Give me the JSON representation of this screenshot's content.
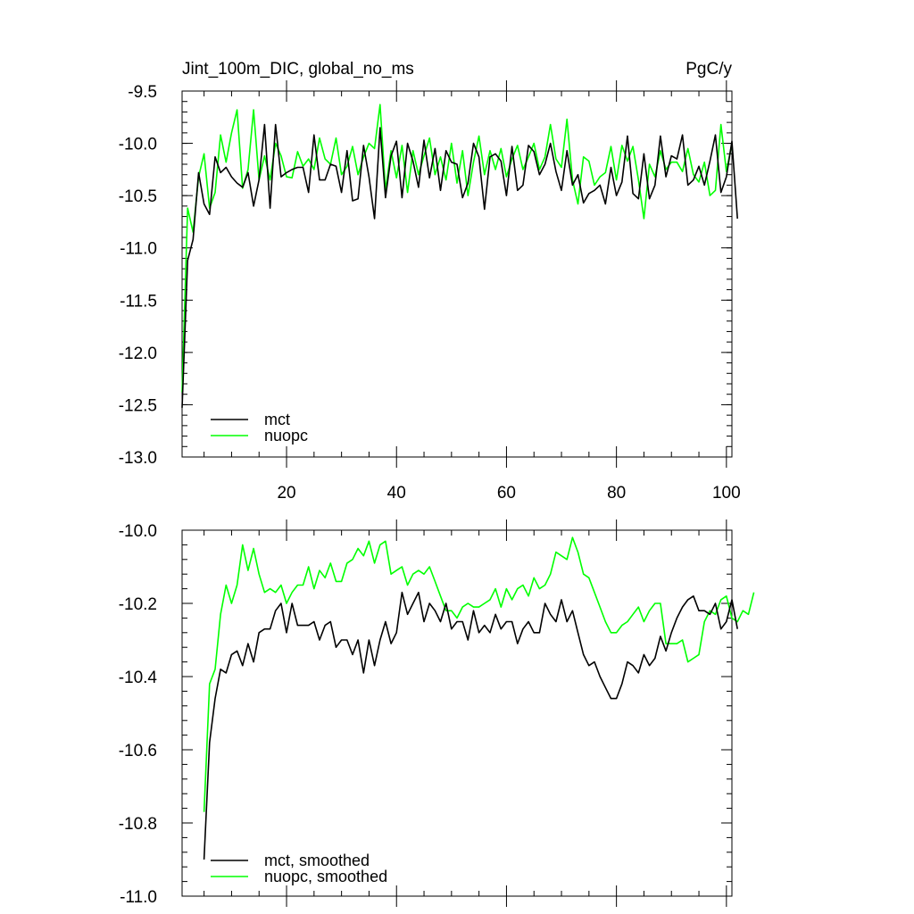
{
  "chart_data": [
    {
      "type": "line",
      "title": "Jint_100m_DIC, global_no_ms",
      "units": "PgC/y",
      "xlim": [
        1,
        101
      ],
      "ylim": [
        -13.0,
        -9.5
      ],
      "x_ticks": [
        20,
        40,
        60,
        80,
        100
      ],
      "y_ticks": [
        -9.5,
        -10.0,
        -10.5,
        -11.0,
        -11.5,
        -12.0,
        -12.5,
        -13.0
      ],
      "y_tick_labels": [
        "-9.5",
        "-10.0",
        "-10.5",
        "-11.0",
        "-11.5",
        "-12.0",
        "-12.5",
        "-13.0"
      ],
      "legend_position": "bottom-left",
      "series": [
        {
          "name": "mct",
          "color": "#000000",
          "x_start": 1,
          "values": [
            -12.53,
            -11.12,
            -10.92,
            -10.28,
            -10.58,
            -10.68,
            -10.13,
            -10.28,
            -10.23,
            -10.32,
            -10.38,
            -10.42,
            -10.28,
            -10.6,
            -10.35,
            -9.82,
            -10.62,
            -9.82,
            -10.32,
            -10.28,
            -10.25,
            -10.23,
            -10.23,
            -10.47,
            -9.92,
            -10.35,
            -10.35,
            -10.2,
            -10.22,
            -10.47,
            -10.07,
            -10.55,
            -10.53,
            -10.02,
            -10.32,
            -10.72,
            -9.85,
            -10.52,
            -10.12,
            -9.98,
            -10.52,
            -10.0,
            -10.17,
            -10.42,
            -9.97,
            -10.33,
            -10.05,
            -10.45,
            -10.07,
            -10.18,
            -10.2,
            -10.52,
            -10.38,
            -10.0,
            -10.13,
            -10.63,
            -10.13,
            -10.1,
            -10.17,
            -10.5,
            -10.03,
            -10.45,
            -10.4,
            -10.02,
            -10.08,
            -10.3,
            -10.2,
            -10.0,
            -10.27,
            -10.45,
            -10.07,
            -10.4,
            -10.3,
            -10.57,
            -10.48,
            -10.45,
            -10.4,
            -10.58,
            -10.23,
            -10.5,
            -10.37,
            -9.93,
            -10.48,
            -10.53,
            -10.1,
            -10.53,
            -10.4,
            -9.93,
            -10.32,
            -10.12,
            -10.15,
            -9.92,
            -10.4,
            -10.35,
            -10.22,
            -10.4,
            -10.17,
            -9.92,
            -10.47,
            -10.32,
            -9.98,
            -10.72
          ]
        },
        {
          "name": "nuopc",
          "color": "#00ff00",
          "x_start": 1,
          "values": [
            -12.38,
            -10.62,
            -10.85,
            -10.32,
            -10.1,
            -10.62,
            -10.47,
            -9.92,
            -10.18,
            -9.9,
            -9.68,
            -10.43,
            -10.25,
            -9.68,
            -10.35,
            -10.12,
            -10.35,
            -10.0,
            -10.12,
            -10.32,
            -10.33,
            -10.08,
            -10.22,
            -10.15,
            -10.25,
            -9.95,
            -10.15,
            -10.2,
            -9.95,
            -10.3,
            -10.22,
            -10.03,
            -10.3,
            -10.13,
            -10.0,
            -10.05,
            -9.63,
            -10.45,
            -10.07,
            -10.33,
            -10.02,
            -10.47,
            -10.07,
            -10.3,
            -10.12,
            -9.95,
            -10.3,
            -10.13,
            -10.35,
            -10.0,
            -10.38,
            -10.07,
            -10.5,
            -10.18,
            -9.93,
            -10.3,
            -10.07,
            -10.25,
            -10.05,
            -10.32,
            -10.15,
            -10.02,
            -10.25,
            -10.13,
            -10.0,
            -10.25,
            -10.13,
            -9.82,
            -10.15,
            -10.23,
            -9.77,
            -10.35,
            -10.58,
            -10.13,
            -10.17,
            -10.4,
            -10.32,
            -10.28,
            -10.03,
            -10.35,
            -10.02,
            -10.17,
            -10.03,
            -10.35,
            -10.72,
            -10.2,
            -10.32,
            -10.07,
            -10.25,
            -10.18,
            -10.18,
            -10.27,
            -10.05,
            -10.3,
            -10.37,
            -10.18,
            -10.5,
            -10.45,
            -9.82,
            -10.27,
            -10.0
          ]
        }
      ]
    },
    {
      "type": "line",
      "title": "",
      "xlim": [
        1,
        101
      ],
      "ylim": [
        -11.0,
        -10.0
      ],
      "x_ticks": [
        20,
        40,
        60,
        80,
        100
      ],
      "y_ticks": [
        -10.0,
        -10.2,
        -10.4,
        -10.6,
        -10.8,
        -11.0
      ],
      "y_tick_labels": [
        "-10.0",
        "-10.2",
        "-10.4",
        "-10.6",
        "-10.8",
        "-11.0"
      ],
      "legend_position": "bottom-left",
      "series": [
        {
          "name": "mct, smoothed",
          "color": "#000000",
          "x_start": 5,
          "values": [
            -10.9,
            -10.58,
            -10.46,
            -10.38,
            -10.39,
            -10.34,
            -10.33,
            -10.37,
            -10.31,
            -10.36,
            -10.28,
            -10.27,
            -10.27,
            -10.22,
            -10.2,
            -10.28,
            -10.2,
            -10.26,
            -10.26,
            -10.26,
            -10.25,
            -10.3,
            -10.26,
            -10.25,
            -10.32,
            -10.3,
            -10.3,
            -10.34,
            -10.3,
            -10.39,
            -10.3,
            -10.37,
            -10.3,
            -10.25,
            -10.31,
            -10.28,
            -10.17,
            -10.23,
            -10.2,
            -10.17,
            -10.25,
            -10.2,
            -10.22,
            -10.25,
            -10.2,
            -10.27,
            -10.25,
            -10.25,
            -10.3,
            -10.22,
            -10.28,
            -10.26,
            -10.28,
            -10.23,
            -10.27,
            -10.25,
            -10.25,
            -10.31,
            -10.27,
            -10.25,
            -10.28,
            -10.28,
            -10.2,
            -10.23,
            -10.25,
            -10.19,
            -10.25,
            -10.22,
            -10.28,
            -10.34,
            -10.37,
            -10.36,
            -10.4,
            -10.43,
            -10.46,
            -10.46,
            -10.42,
            -10.36,
            -10.37,
            -10.39,
            -10.34,
            -10.37,
            -10.35,
            -10.29,
            -10.33,
            -10.28,
            -10.24,
            -10.21,
            -10.19,
            -10.18,
            -10.22,
            -10.22,
            -10.23,
            -10.2,
            -10.27,
            -10.25,
            -10.19,
            -10.27
          ]
        },
        {
          "name": "nuopc, smoothed",
          "color": "#00ff00",
          "x_start": 5,
          "values": [
            -10.77,
            -10.42,
            -10.38,
            -10.23,
            -10.15,
            -10.2,
            -10.15,
            -10.04,
            -10.11,
            -10.05,
            -10.12,
            -10.17,
            -10.16,
            -10.17,
            -10.15,
            -10.2,
            -10.17,
            -10.15,
            -10.15,
            -10.1,
            -10.16,
            -10.11,
            -10.13,
            -10.09,
            -10.14,
            -10.14,
            -10.09,
            -10.08,
            -10.05,
            -10.07,
            -10.03,
            -10.09,
            -10.04,
            -10.03,
            -10.12,
            -10.11,
            -10.1,
            -10.15,
            -10.12,
            -10.11,
            -10.12,
            -10.1,
            -10.14,
            -10.18,
            -10.22,
            -10.22,
            -10.24,
            -10.21,
            -10.2,
            -10.21,
            -10.21,
            -10.2,
            -10.19,
            -10.16,
            -10.21,
            -10.16,
            -10.19,
            -10.16,
            -10.15,
            -10.18,
            -10.13,
            -10.16,
            -10.15,
            -10.12,
            -10.06,
            -10.07,
            -10.08,
            -10.02,
            -10.06,
            -10.12,
            -10.13,
            -10.17,
            -10.21,
            -10.25,
            -10.28,
            -10.28,
            -10.26,
            -10.25,
            -10.23,
            -10.21,
            -10.25,
            -10.22,
            -10.2,
            -10.2,
            -10.31,
            -10.31,
            -10.31,
            -10.3,
            -10.36,
            -10.35,
            -10.34,
            -10.25,
            -10.22,
            -10.23,
            -10.19,
            -10.18,
            -10.24,
            -10.25,
            -10.22,
            -10.23,
            -10.17
          ]
        }
      ]
    }
  ]
}
